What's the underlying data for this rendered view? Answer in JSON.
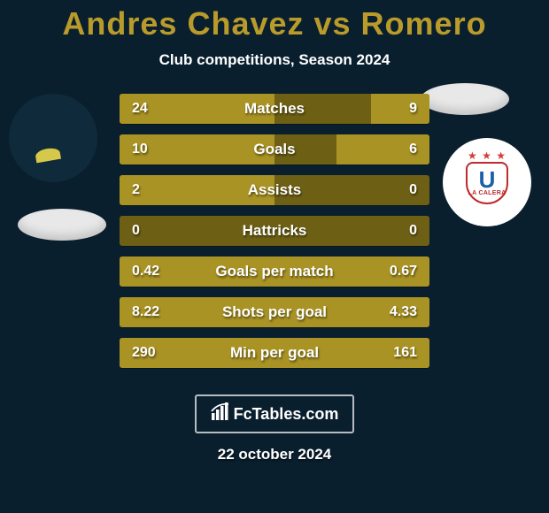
{
  "title": "Andres Chavez vs Romero",
  "subtitle": "Club competitions, Season 2024",
  "footer_brand": "FcTables.com",
  "footer_date": "22 october 2024",
  "crest": {
    "letter": "U",
    "banner": "LA CALERA"
  },
  "colors": {
    "background": "#0a1f2e",
    "title": "#b89b2a",
    "bar_bg": "#6d6015",
    "bar_fill": "#a99324"
  },
  "bars": [
    {
      "label": "Matches",
      "left": "24",
      "right": "9",
      "left_pct": 50,
      "right_pct": 19,
      "full": false
    },
    {
      "label": "Goals",
      "left": "10",
      "right": "6",
      "left_pct": 50,
      "right_pct": 30,
      "full": false
    },
    {
      "label": "Assists",
      "left": "2",
      "right": "0",
      "left_pct": 50,
      "right_pct": 0,
      "full": false
    },
    {
      "label": "Hattricks",
      "left": "0",
      "right": "0",
      "left_pct": 0,
      "right_pct": 0,
      "full": false
    },
    {
      "label": "Goals per match",
      "left": "0.42",
      "right": "0.67",
      "left_pct": 100,
      "right_pct": 0,
      "full": true
    },
    {
      "label": "Shots per goal",
      "left": "8.22",
      "right": "4.33",
      "left_pct": 100,
      "right_pct": 0,
      "full": true
    },
    {
      "label": "Min per goal",
      "left": "290",
      "right": "161",
      "left_pct": 100,
      "right_pct": 0,
      "full": true
    }
  ]
}
